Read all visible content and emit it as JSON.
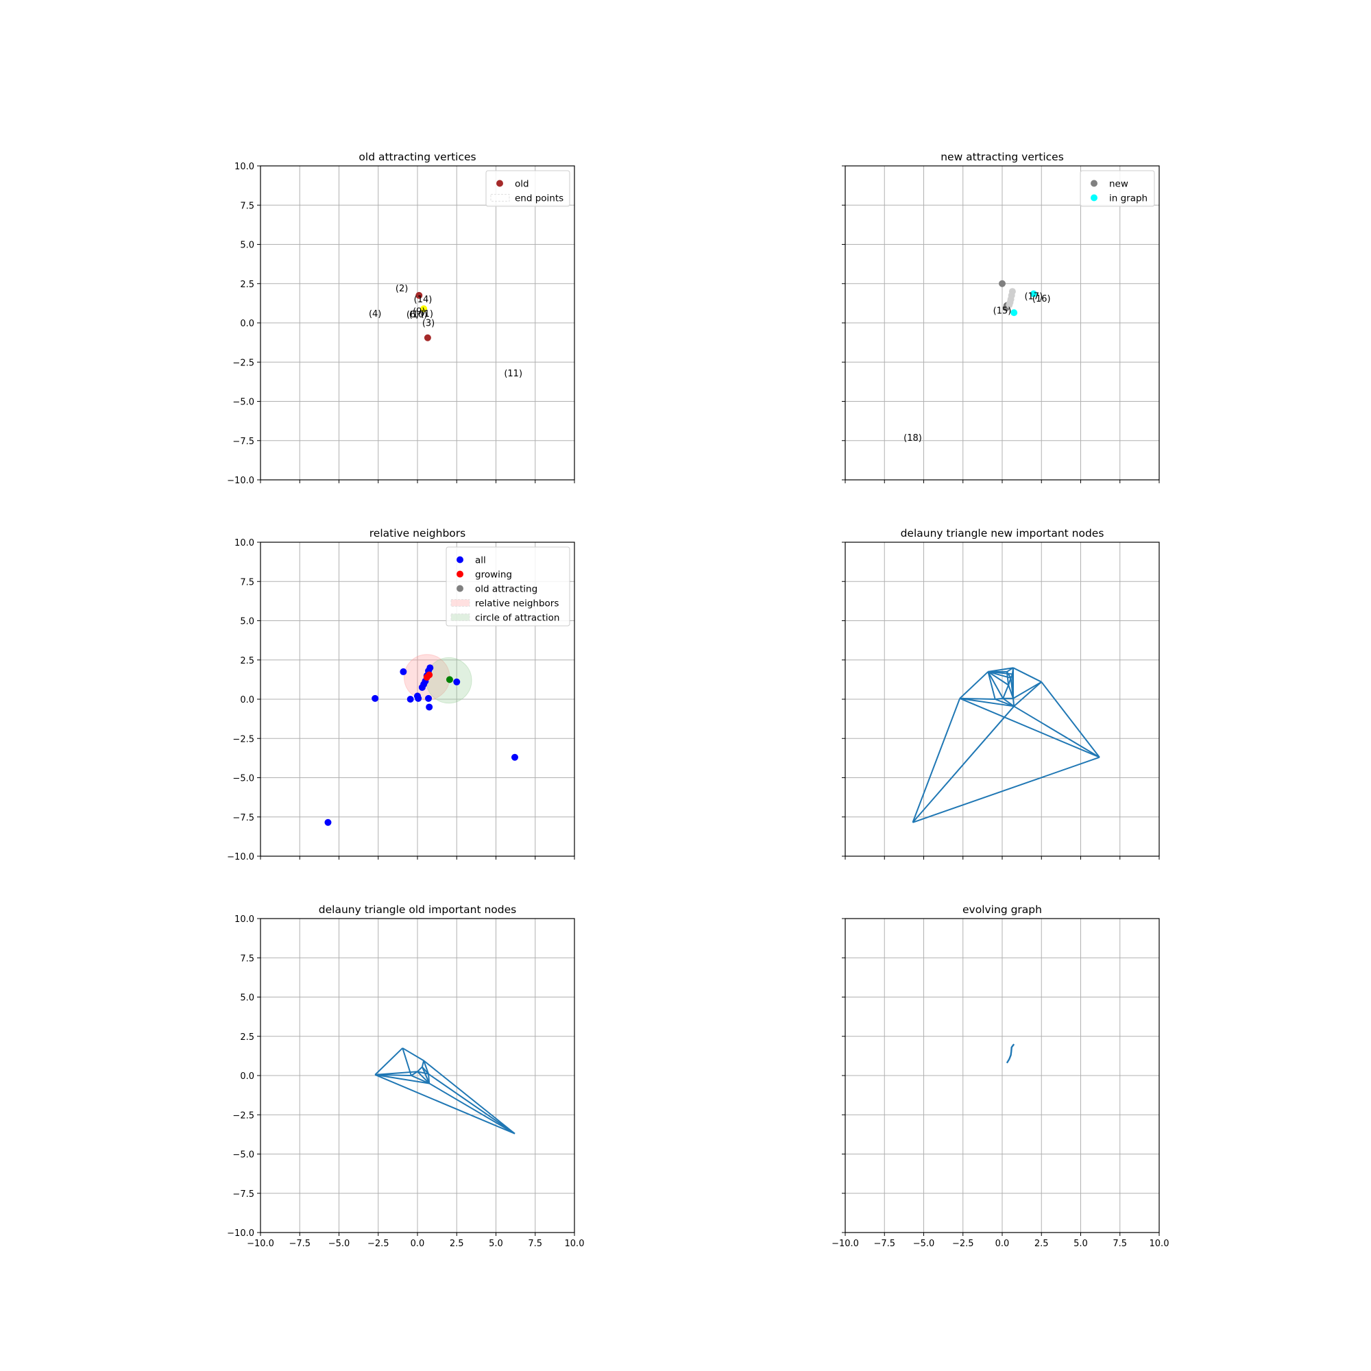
{
  "figure": {
    "background": "#ffffff"
  },
  "colors": {
    "grid": "#b0b0b0",
    "line": "#1f77b4",
    "blue": "#0000ff",
    "red": "#ff0000",
    "gray": "#808080",
    "darkred": "#a52a2a",
    "green": "#008000",
    "cyan": "#00ffff",
    "yellow": "#ffff00"
  },
  "chart_data": [
    {
      "id": "old",
      "type": "scatter",
      "title": "old attracting vertices",
      "xlim": [
        -10,
        10
      ],
      "ylim": [
        -10,
        10
      ],
      "xticks": [],
      "yticks": [
        "10.0",
        "7.5",
        "5.0",
        "2.5",
        "0.0",
        "−2.5",
        "−5.0",
        "−7.5",
        "−10.0"
      ],
      "grid": true,
      "legend": {
        "placement": "top-right",
        "items": [
          {
            "label": "old",
            "kind": "dot",
            "color": "#a52a2a"
          },
          {
            "label": "end points",
            "kind": "patch",
            "color": "#ffffff"
          }
        ]
      },
      "points": [
        {
          "x": 0.1,
          "y": 1.75,
          "color": "#a52a2a"
        },
        {
          "x": 0.65,
          "y": -0.95,
          "color": "#a52a2a"
        },
        {
          "x": 0.4,
          "y": 0.9,
          "color": "#ffff00"
        }
      ],
      "annotations": [
        {
          "text": "(2)",
          "x": -1.0,
          "y": 2.0
        },
        {
          "text": "(14)",
          "x": 0.35,
          "y": 1.3
        },
        {
          "text": "(4)",
          "x": -2.7,
          "y": 0.4
        },
        {
          "text": "(9)",
          "x": 0.1,
          "y": 0.55
        },
        {
          "text": "(6)",
          "x": -0.3,
          "y": 0.35
        },
        {
          "text": "(10)",
          "x": 0.05,
          "y": 0.35
        },
        {
          "text": "(1)",
          "x": 0.6,
          "y": 0.4
        },
        {
          "text": "(3)",
          "x": 0.7,
          "y": -0.2
        },
        {
          "text": "(11)",
          "x": 6.1,
          "y": -3.4
        }
      ]
    },
    {
      "id": "new",
      "type": "scatter",
      "title": "new attracting vertices",
      "xlim": [
        -10,
        10
      ],
      "ylim": [
        -10,
        10
      ],
      "xticks": [],
      "yticks": [],
      "grid": true,
      "legend": {
        "placement": "top-right",
        "items": [
          {
            "label": "new",
            "kind": "dot",
            "color": "#808080"
          },
          {
            "label": "in graph",
            "kind": "dot",
            "color": "#00ffff"
          }
        ]
      },
      "points": [
        {
          "x": 0.0,
          "y": 2.5,
          "color": "#808080"
        },
        {
          "x": 0.3,
          "y": 1.1,
          "color": "#707070"
        },
        {
          "x": 0.25,
          "y": 0.95,
          "color": "#808080"
        },
        {
          "x": 0.75,
          "y": 0.65,
          "color": "#00ffff"
        },
        {
          "x": 2.0,
          "y": 1.85,
          "color": "#00ffff"
        },
        {
          "x": 0.65,
          "y": 2.0,
          "color": "#cfcfcf"
        },
        {
          "x": 0.6,
          "y": 1.75,
          "color": "#cfcfcf"
        },
        {
          "x": 0.55,
          "y": 1.5,
          "color": "#cfcfcf"
        },
        {
          "x": 0.5,
          "y": 1.3,
          "color": "#cfcfcf"
        },
        {
          "x": 0.45,
          "y": 1.15,
          "color": "#cfcfcf"
        }
      ],
      "annotations": [
        {
          "text": "(17)",
          "x": 2.0,
          "y": 1.5
        },
        {
          "text": "(16)",
          "x": 2.5,
          "y": 1.35
        },
        {
          "text": "(15)",
          "x": 0.0,
          "y": 0.6
        },
        {
          "text": "(18)",
          "x": -5.7,
          "y": -7.5
        }
      ]
    },
    {
      "id": "rel",
      "type": "scatter",
      "title": "relative neighbors",
      "xlim": [
        -10,
        10
      ],
      "ylim": [
        -10,
        10
      ],
      "xticks": [],
      "yticks": [
        "10.0",
        "7.5",
        "5.0",
        "2.5",
        "0.0",
        "−2.5",
        "−5.0",
        "−7.5",
        "−10.0"
      ],
      "grid": true,
      "legend": {
        "placement": "top-right",
        "items": [
          {
            "label": "all",
            "kind": "dot",
            "color": "#0000ff"
          },
          {
            "label": "growing",
            "kind": "dot",
            "color": "#ff0000"
          },
          {
            "label": "old attracting",
            "kind": "dot",
            "color": "#808080"
          },
          {
            "label": "relative neighbors",
            "kind": "patch",
            "color": "#ffcccc"
          },
          {
            "label": "circle of attraction",
            "kind": "patch",
            "color": "#cce5cc"
          }
        ]
      },
      "circles": [
        {
          "cx": 0.6,
          "cy": 1.4,
          "r": 1.45,
          "color": "#ff9999",
          "opacity": 0.3
        },
        {
          "cx": 2.0,
          "cy": 1.2,
          "r": 1.45,
          "color": "#99cc99",
          "opacity": 0.3
        }
      ],
      "points": [
        {
          "x": -0.9,
          "y": 1.75,
          "color": "#0000ff"
        },
        {
          "x": -2.7,
          "y": 0.05,
          "color": "#0000ff"
        },
        {
          "x": -0.45,
          "y": 0.0,
          "color": "#0000ff"
        },
        {
          "x": 0.0,
          "y": 0.2,
          "color": "#0000ff"
        },
        {
          "x": 0.05,
          "y": 0.05,
          "color": "#0000ff"
        },
        {
          "x": 0.7,
          "y": 0.05,
          "color": "#0000ff"
        },
        {
          "x": 0.75,
          "y": -0.5,
          "color": "#0000ff"
        },
        {
          "x": 0.3,
          "y": 0.75,
          "color": "#0000ff"
        },
        {
          "x": 0.4,
          "y": 0.95,
          "color": "#0000ff"
        },
        {
          "x": 0.5,
          "y": 1.15,
          "color": "#0000ff"
        },
        {
          "x": 0.6,
          "y": 1.5,
          "color": "#0000ff"
        },
        {
          "x": 0.7,
          "y": 1.8,
          "color": "#0000ff"
        },
        {
          "x": 0.8,
          "y": 2.0,
          "color": "#0000ff"
        },
        {
          "x": 2.5,
          "y": 1.1,
          "color": "#0000ff"
        },
        {
          "x": 6.2,
          "y": -3.7,
          "color": "#0000ff"
        },
        {
          "x": -5.7,
          "y": -7.85,
          "color": "#0000ff"
        },
        {
          "x": 2.05,
          "y": 1.25,
          "color": "#008000"
        },
        {
          "x": 0.6,
          "y": 1.4,
          "color": "#ff0000"
        },
        {
          "x": 0.75,
          "y": 1.55,
          "color": "#ff0000"
        }
      ]
    },
    {
      "id": "delnew",
      "type": "line",
      "title": "delauny triangle new important nodes",
      "xlim": [
        -10,
        10
      ],
      "ylim": [
        -10,
        10
      ],
      "xticks": [],
      "yticks": [],
      "grid": true,
      "nodes": [
        [
          -0.9,
          1.75
        ],
        [
          -2.7,
          0.05
        ],
        [
          -5.7,
          -7.85
        ],
        [
          6.2,
          -3.7
        ],
        [
          2.5,
          1.1
        ],
        [
          0.7,
          2.0
        ],
        [
          0.05,
          0.05
        ],
        [
          0.75,
          -0.45
        ],
        [
          0.4,
          0.9
        ],
        [
          0.55,
          1.35
        ],
        [
          0.65,
          1.6
        ],
        [
          -0.45,
          0.0
        ],
        [
          0.7,
          0.05
        ],
        [
          0.3,
          1.75
        ]
      ],
      "edges": [
        [
          0,
          1
        ],
        [
          1,
          2
        ],
        [
          2,
          3
        ],
        [
          3,
          4
        ],
        [
          4,
          5
        ],
        [
          5,
          0
        ],
        [
          1,
          3
        ],
        [
          2,
          7
        ],
        [
          7,
          3
        ],
        [
          7,
          4
        ],
        [
          0,
          11
        ],
        [
          11,
          1
        ],
        [
          11,
          7
        ],
        [
          1,
          7
        ],
        [
          0,
          13
        ],
        [
          13,
          5
        ],
        [
          0,
          6
        ],
        [
          0,
          8
        ],
        [
          0,
          9
        ],
        [
          0,
          10
        ],
        [
          6,
          7
        ],
        [
          6,
          8
        ],
        [
          8,
          9
        ],
        [
          9,
          10
        ],
        [
          10,
          5
        ],
        [
          5,
          12
        ],
        [
          12,
          7
        ],
        [
          12,
          4
        ],
        [
          8,
          12
        ],
        [
          9,
          12
        ],
        [
          10,
          12
        ],
        [
          13,
          9
        ],
        [
          13,
          8
        ],
        [
          6,
          12
        ],
        [
          11,
          6
        ]
      ]
    },
    {
      "id": "delold",
      "type": "line",
      "title": "delauny triangle old important nodes",
      "xlim": [
        -10,
        10
      ],
      "ylim": [
        -10,
        10
      ],
      "xticks": [
        "−10.0",
        "−7.5",
        "−5.0",
        "−2.5",
        "0.0",
        "2.5",
        "5.0",
        "7.5",
        "10.0"
      ],
      "yticks": [
        "10.0",
        "7.5",
        "5.0",
        "2.5",
        "0.0",
        "−2.5",
        "−5.0",
        "−7.5",
        "−10.0"
      ],
      "grid": true,
      "nodes": [
        [
          -0.95,
          1.75
        ],
        [
          -2.7,
          0.05
        ],
        [
          6.2,
          -3.7
        ],
        [
          0.4,
          0.95
        ],
        [
          -0.4,
          0.0
        ],
        [
          0.0,
          0.25
        ],
        [
          0.7,
          0.1
        ],
        [
          0.75,
          -0.5
        ],
        [
          0.3,
          0.55
        ]
      ],
      "edges": [
        [
          0,
          1
        ],
        [
          1,
          2
        ],
        [
          0,
          4
        ],
        [
          0,
          3
        ],
        [
          3,
          2
        ],
        [
          3,
          6
        ],
        [
          1,
          4
        ],
        [
          4,
          5
        ],
        [
          5,
          8
        ],
        [
          8,
          3
        ],
        [
          8,
          6
        ],
        [
          6,
          7
        ],
        [
          7,
          2
        ],
        [
          5,
          7
        ],
        [
          4,
          7
        ],
        [
          1,
          7
        ],
        [
          6,
          2
        ],
        [
          8,
          7
        ],
        [
          5,
          6
        ],
        [
          1,
          5
        ]
      ]
    },
    {
      "id": "evolve",
      "type": "line",
      "title": "evolving graph",
      "xlim": [
        -10,
        10
      ],
      "ylim": [
        -10,
        10
      ],
      "xticks": [
        "−10.0",
        "−7.5",
        "−5.0",
        "−2.5",
        "0.0",
        "2.5",
        "5.0",
        "7.5",
        "10.0"
      ],
      "yticks": [],
      "grid": true,
      "polylines": [
        [
          [
            0.3,
            0.8
          ],
          [
            0.45,
            1.05
          ],
          [
            0.55,
            1.3
          ],
          [
            0.58,
            1.55
          ],
          [
            0.6,
            1.8
          ],
          [
            0.75,
            2.0
          ]
        ]
      ]
    }
  ]
}
